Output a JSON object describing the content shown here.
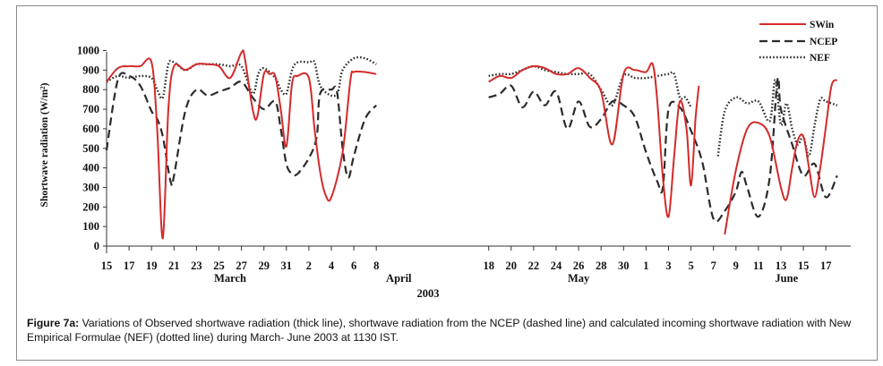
{
  "figure": {
    "caption_label": "Figure 7a:",
    "caption_text": " Variations of Observed shortwave radiation (thick line), shortwave radiation from the NCEP (dashed line) and calculated incoming shortwave radiation with New Empirical Formulae (NEF) (dotted line) during March- June 2003 at 1130 IST."
  },
  "colors": {
    "swin": "#d42a2a",
    "ncep": "#2b2b2b",
    "nef": "#2b2b2b"
  },
  "chart_data": {
    "type": "line",
    "ylabel": "Shortwave radiation (W/m²)",
    "ylim": [
      0,
      1000
    ],
    "yticks": [
      0,
      100,
      200,
      300,
      400,
      500,
      600,
      700,
      800,
      900,
      1000
    ],
    "year_label": "2003",
    "months": [
      {
        "label": "March",
        "x": 21
      },
      {
        "label": "April",
        "x": 36
      },
      {
        "label": "May",
        "x": 52
      },
      {
        "label": "June",
        "x": 70.5
      }
    ],
    "xticks": [
      {
        "x": 0,
        "label": "15"
      },
      {
        "x": 2,
        "label": "17"
      },
      {
        "x": 4,
        "label": "19"
      },
      {
        "x": 6,
        "label": "21"
      },
      {
        "x": 8,
        "label": "23"
      },
      {
        "x": 10,
        "label": "25"
      },
      {
        "x": 12,
        "label": "27"
      },
      {
        "x": 14,
        "label": "29"
      },
      {
        "x": 16,
        "label": "31"
      },
      {
        "x": 18,
        "label": "2"
      },
      {
        "x": 20,
        "label": "4"
      },
      {
        "x": 22,
        "label": "6"
      },
      {
        "x": 24,
        "label": "8"
      },
      {
        "x": 34,
        "label": "18"
      },
      {
        "x": 36,
        "label": "20"
      },
      {
        "x": 38,
        "label": "22"
      },
      {
        "x": 40,
        "label": "24"
      },
      {
        "x": 42,
        "label": "26"
      },
      {
        "x": 44,
        "label": "28"
      },
      {
        "x": 46,
        "label": "30"
      },
      {
        "x": 48,
        "label": "1"
      },
      {
        "x": 50,
        "label": "3"
      },
      {
        "x": 52,
        "label": "5"
      },
      {
        "x": 54,
        "label": "7"
      },
      {
        "x": 56,
        "label": "9"
      },
      {
        "x": 58,
        "label": "11"
      },
      {
        "x": 60,
        "label": "13"
      },
      {
        "x": 62,
        "label": "15"
      },
      {
        "x": 64,
        "label": "17"
      }
    ],
    "xlim": [
      0,
      65.5
    ],
    "legend_position": "top-right",
    "series": [
      {
        "name": "SWin",
        "style": "solid",
        "segments": [
          [
            [
              0,
              840
            ],
            [
              1,
              910
            ],
            [
              2,
              920
            ],
            [
              3,
              920
            ],
            [
              4,
              940
            ],
            [
              4.5,
              600
            ],
            [
              5,
              40
            ],
            [
              5.5,
              700
            ],
            [
              6,
              920
            ],
            [
              7,
              900
            ],
            [
              8,
              930
            ],
            [
              9,
              930
            ],
            [
              10,
              920
            ],
            [
              11,
              860
            ],
            [
              12,
              990
            ],
            [
              12.3,
              960
            ],
            [
              13,
              700
            ],
            [
              13.4,
              660
            ],
            [
              14,
              880
            ],
            [
              14.5,
              880
            ],
            [
              15,
              870
            ],
            [
              15.5,
              700
            ],
            [
              16,
              510
            ],
            [
              16.5,
              830
            ],
            [
              17,
              870
            ],
            [
              18,
              860
            ],
            [
              18.5,
              600
            ],
            [
              19,
              380
            ],
            [
              19.5,
              260
            ],
            [
              20,
              250
            ],
            [
              21,
              480
            ],
            [
              21.7,
              850
            ],
            [
              22,
              890
            ],
            [
              23,
              890
            ],
            [
              24,
              880
            ]
          ],
          [
            [
              34,
              840
            ],
            [
              35,
              870
            ],
            [
              36,
              860
            ],
            [
              37,
              900
            ],
            [
              38,
              920
            ],
            [
              39,
              910
            ],
            [
              40,
              880
            ],
            [
              41,
              880
            ],
            [
              42,
              910
            ],
            [
              43,
              860
            ],
            [
              44,
              790
            ],
            [
              45,
              520
            ],
            [
              46,
              880
            ],
            [
              47,
              900
            ],
            [
              48,
              890
            ],
            [
              48.6,
              930
            ],
            [
              49,
              740
            ],
            [
              49.5,
              350
            ],
            [
              50,
              150
            ],
            [
              50.5,
              460
            ],
            [
              51,
              740
            ],
            [
              51.6,
              600
            ],
            [
              52,
              310
            ],
            [
              52.4,
              650
            ],
            [
              52.7,
              820
            ]
          ],
          [
            [
              55,
              60
            ],
            [
              56,
              390
            ],
            [
              57,
              600
            ],
            [
              58,
              630
            ],
            [
              59,
              560
            ],
            [
              60,
              300
            ],
            [
              60.5,
              240
            ],
            [
              61,
              400
            ],
            [
              61.5,
              540
            ],
            [
              62,
              560
            ],
            [
              62.5,
              400
            ],
            [
              63,
              250
            ],
            [
              63.5,
              400
            ],
            [
              64,
              610
            ],
            [
              64.5,
              820
            ],
            [
              65,
              850
            ]
          ]
        ]
      },
      {
        "name": "NCEP",
        "style": "dashed",
        "segments": [
          [
            [
              0,
              490
            ],
            [
              1,
              850
            ],
            [
              2,
              870
            ],
            [
              3,
              820
            ],
            [
              4,
              690
            ],
            [
              4.5,
              650
            ],
            [
              5,
              560
            ],
            [
              5.7,
              330
            ],
            [
              6,
              360
            ],
            [
              7,
              690
            ],
            [
              8,
              800
            ],
            [
              9,
              770
            ],
            [
              10,
              790
            ],
            [
              11,
              810
            ],
            [
              12,
              840
            ],
            [
              13,
              760
            ],
            [
              14,
              700
            ],
            [
              15,
              740
            ],
            [
              15.5,
              600
            ],
            [
              16,
              420
            ],
            [
              16.5,
              370
            ],
            [
              17,
              370
            ],
            [
              18,
              450
            ],
            [
              18.7,
              560
            ],
            [
              19,
              780
            ],
            [
              20,
              800
            ],
            [
              20.5,
              790
            ],
            [
              21,
              500
            ],
            [
              21.5,
              350
            ],
            [
              22,
              460
            ],
            [
              23,
              650
            ],
            [
              24,
              720
            ]
          ],
          [
            [
              34,
              760
            ],
            [
              35,
              780
            ],
            [
              36,
              820
            ],
            [
              37,
              710
            ],
            [
              38,
              790
            ],
            [
              39,
              720
            ],
            [
              40,
              790
            ],
            [
              41,
              600
            ],
            [
              42,
              740
            ],
            [
              43,
              610
            ],
            [
              44,
              650
            ],
            [
              45,
              740
            ],
            [
              46,
              720
            ],
            [
              47,
              660
            ],
            [
              48,
              480
            ],
            [
              49,
              330
            ],
            [
              49.5,
              300
            ],
            [
              50,
              700
            ],
            [
              51,
              710
            ],
            [
              52,
              590
            ],
            [
              53,
              430
            ],
            [
              54,
              140
            ],
            [
              55,
              180
            ],
            [
              56,
              280
            ],
            [
              56.5,
              380
            ],
            [
              57,
              300
            ],
            [
              58,
              150
            ],
            [
              59,
              350
            ],
            [
              59.7,
              850
            ],
            [
              60,
              700
            ],
            [
              61,
              520
            ],
            [
              62,
              360
            ],
            [
              63,
              420
            ],
            [
              64,
              250
            ],
            [
              65,
              360
            ]
          ]
        ]
      },
      {
        "name": "NEF",
        "style": "dotted",
        "segments": [
          [
            [
              0,
              840
            ],
            [
              1,
              870
            ],
            [
              2,
              860
            ],
            [
              3,
              870
            ],
            [
              4,
              860
            ],
            [
              4.5,
              800
            ],
            [
              5,
              760
            ],
            [
              5.5,
              930
            ],
            [
              6,
              940
            ],
            [
              7,
              900
            ],
            [
              8,
              930
            ],
            [
              9,
              930
            ],
            [
              10,
              930
            ],
            [
              11,
              920
            ],
            [
              12,
              920
            ],
            [
              13,
              780
            ],
            [
              13.5,
              880
            ],
            [
              14,
              910
            ],
            [
              15,
              860
            ],
            [
              15.5,
              800
            ],
            [
              16,
              780
            ],
            [
              16.5,
              900
            ],
            [
              17,
              940
            ],
            [
              18,
              940
            ],
            [
              18.5,
              940
            ],
            [
              19,
              820
            ],
            [
              20,
              770
            ],
            [
              20.6,
              790
            ],
            [
              21,
              900
            ],
            [
              22,
              960
            ],
            [
              23,
              960
            ],
            [
              24,
              930
            ]
          ],
          [
            [
              34,
              870
            ],
            [
              35,
              880
            ],
            [
              36,
              880
            ],
            [
              37,
              900
            ],
            [
              38,
              920
            ],
            [
              39,
              900
            ],
            [
              40,
              890
            ],
            [
              41,
              880
            ],
            [
              42,
              880
            ],
            [
              43,
              880
            ],
            [
              44,
              800
            ],
            [
              45,
              720
            ],
            [
              46,
              870
            ],
            [
              47,
              860
            ],
            [
              48,
              860
            ],
            [
              49,
              870
            ],
            [
              50,
              880
            ],
            [
              50.5,
              880
            ],
            [
              51,
              760
            ],
            [
              51.5,
              760
            ],
            [
              52,
              710
            ]
          ],
          [
            [
              54.4,
              460
            ],
            [
              55,
              690
            ],
            [
              56,
              760
            ],
            [
              57,
              730
            ],
            [
              58,
              740
            ],
            [
              59,
              640
            ],
            [
              59.5,
              850
            ],
            [
              60,
              620
            ],
            [
              60.5,
              730
            ],
            [
              61,
              600
            ],
            [
              61.5,
              520
            ],
            [
              62,
              560
            ],
            [
              62.5,
              460
            ],
            [
              63,
              620
            ],
            [
              63.5,
              750
            ],
            [
              64,
              740
            ],
            [
              65,
              720
            ]
          ]
        ]
      }
    ]
  }
}
